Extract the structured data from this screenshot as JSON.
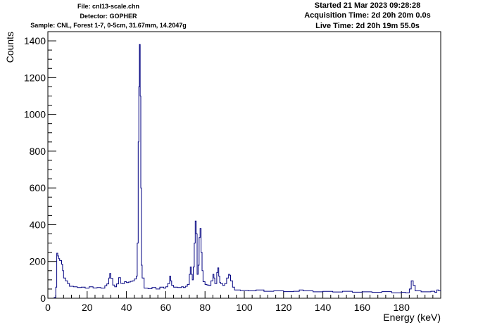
{
  "header": {
    "file": "File: cnl13-scale.chn",
    "detector": "Detector: GOPHER",
    "sample": "Sample: CNL, Forest 1-7, 0-5cm, 31.67mm, 14.2047g",
    "started": "Started 21 Mar 2023 09:28:28",
    "acquisition_time": "Acquisition Time: 2d 20h 20m 0.0s",
    "live_time": "Live Time: 2d 20h 19m 55.0s"
  },
  "chart_data": {
    "type": "line",
    "style": "step-histogram",
    "line_color": "#000080",
    "xlabel": "Energy (keV)",
    "ylabel": "Counts",
    "xlim": [
      0,
      200
    ],
    "ylim": [
      0,
      1450
    ],
    "x_ticks": [
      0,
      20,
      40,
      60,
      80,
      100,
      120,
      140,
      160,
      180
    ],
    "x_tick_labels": [
      "0",
      "20",
      "40",
      "60",
      "80",
      "100",
      "120",
      "140",
      "160",
      "180"
    ],
    "y_ticks": [
      0,
      200,
      400,
      600,
      800,
      1000,
      1200,
      1400
    ],
    "y_tick_labels": [
      "0",
      "200",
      "400",
      "600",
      "800",
      "1000",
      "1200",
      "1400"
    ],
    "grid": false,
    "series": [
      {
        "points": [
          [
            3,
            5
          ],
          [
            4,
            60
          ],
          [
            4.5,
            245
          ],
          [
            5,
            230
          ],
          [
            5.5,
            215
          ],
          [
            6,
            205
          ],
          [
            7,
            185
          ],
          [
            7.5,
            150
          ],
          [
            8,
            110
          ],
          [
            9,
            95
          ],
          [
            10,
            80
          ],
          [
            11,
            65
          ],
          [
            13,
            62
          ],
          [
            15,
            58
          ],
          [
            17,
            60
          ],
          [
            19,
            55
          ],
          [
            21,
            62
          ],
          [
            23,
            56
          ],
          [
            25,
            58
          ],
          [
            27,
            55
          ],
          [
            29,
            68
          ],
          [
            30,
            78
          ],
          [
            31,
            110
          ],
          [
            31.5,
            135
          ],
          [
            32,
            108
          ],
          [
            33,
            72
          ],
          [
            34,
            62
          ],
          [
            35,
            78
          ],
          [
            36,
            112
          ],
          [
            37,
            82
          ],
          [
            38,
            80
          ],
          [
            39,
            90
          ],
          [
            40,
            85
          ],
          [
            41,
            88
          ],
          [
            42,
            92
          ],
          [
            43,
            95
          ],
          [
            44,
            105
          ],
          [
            45,
            120
          ],
          [
            45.5,
            300
          ],
          [
            46,
            850
          ],
          [
            46.3,
            1150
          ],
          [
            46.6,
            1380
          ],
          [
            47,
            1100
          ],
          [
            47.3,
            600
          ],
          [
            47.6,
            180
          ],
          [
            48,
            110
          ],
          [
            49,
            55
          ],
          [
            51,
            52
          ],
          [
            53,
            58
          ],
          [
            55,
            50
          ],
          [
            57,
            60
          ],
          [
            59,
            55
          ],
          [
            60,
            62
          ],
          [
            61,
            80
          ],
          [
            62,
            120
          ],
          [
            62.5,
            95
          ],
          [
            63,
            70
          ],
          [
            64,
            60
          ],
          [
            66,
            58
          ],
          [
            68,
            62
          ],
          [
            69,
            58
          ],
          [
            70,
            65
          ],
          [
            71,
            75
          ],
          [
            72,
            130
          ],
          [
            72.5,
            170
          ],
          [
            73,
            130
          ],
          [
            73.5,
            100
          ],
          [
            74,
            170
          ],
          [
            74.5,
            300
          ],
          [
            75,
            420
          ],
          [
            75.5,
            350
          ],
          [
            76,
            130
          ],
          [
            76.5,
            180
          ],
          [
            77,
            330
          ],
          [
            77.5,
            380
          ],
          [
            78,
            250
          ],
          [
            78.5,
            150
          ],
          [
            79,
            90
          ],
          [
            80,
            75
          ],
          [
            81,
            72
          ],
          [
            82,
            70
          ],
          [
            83,
            95
          ],
          [
            84,
            130
          ],
          [
            84.5,
            110
          ],
          [
            85,
            80
          ],
          [
            86,
            140
          ],
          [
            86.5,
            165
          ],
          [
            87,
            120
          ],
          [
            87.5,
            85
          ],
          [
            88,
            80
          ],
          [
            89,
            70
          ],
          [
            90,
            80
          ],
          [
            91,
            110
          ],
          [
            92,
            130
          ],
          [
            92.5,
            125
          ],
          [
            93,
            95
          ],
          [
            94,
            60
          ],
          [
            95,
            45
          ],
          [
            98,
            42
          ],
          [
            102,
            40
          ],
          [
            106,
            45
          ],
          [
            110,
            38
          ],
          [
            115,
            40
          ],
          [
            120,
            36
          ],
          [
            125,
            38
          ],
          [
            128,
            45
          ],
          [
            130,
            40
          ],
          [
            135,
            35
          ],
          [
            140,
            37
          ],
          [
            145,
            34
          ],
          [
            150,
            38
          ],
          [
            155,
            33
          ],
          [
            160,
            35
          ],
          [
            165,
            32
          ],
          [
            170,
            36
          ],
          [
            175,
            30
          ],
          [
            180,
            32
          ],
          [
            182,
            30
          ],
          [
            184,
            50
          ],
          [
            185,
            95
          ],
          [
            186,
            70
          ],
          [
            187,
            40
          ],
          [
            190,
            35
          ],
          [
            195,
            38
          ],
          [
            197,
            32
          ],
          [
            198,
            45
          ],
          [
            199,
            40
          ]
        ]
      }
    ]
  }
}
